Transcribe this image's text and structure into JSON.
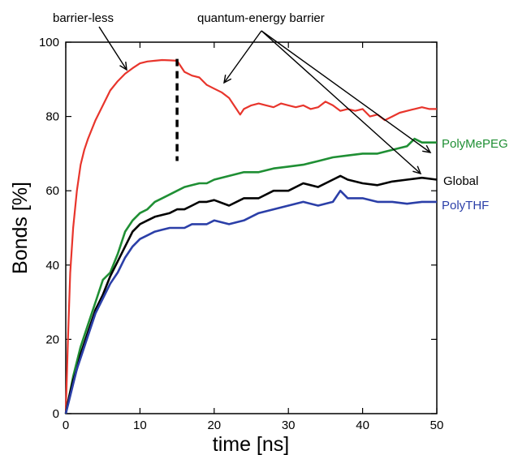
{
  "chart_data": {
    "type": "line",
    "title": "",
    "xlabel": "time [ns]",
    "ylabel": "Bonds [%]",
    "xlim": [
      0,
      50
    ],
    "ylim": [
      0,
      100
    ],
    "xticks": [
      0,
      10,
      20,
      30,
      40,
      50
    ],
    "yticks": [
      0,
      20,
      40,
      60,
      80,
      100
    ],
    "grid": false,
    "legend": "inline-right",
    "annotations": {
      "barrier_less": "barrier-less",
      "quantum_barrier": "quantum-energy barrier",
      "switch_time": 15
    },
    "series": [
      {
        "name": "",
        "color": "#e8352c",
        "x": [
          0,
          0.3,
          0.6,
          1,
          1.5,
          2,
          2.5,
          3,
          4,
          5,
          6,
          7,
          8,
          9,
          10,
          11,
          12,
          13,
          14,
          15,
          16,
          17,
          18,
          19,
          20,
          21,
          22,
          23,
          23.5,
          24,
          25,
          26,
          27,
          28,
          29,
          30,
          31,
          32,
          33,
          34,
          35,
          36,
          37,
          38,
          39,
          40,
          41,
          42,
          43,
          44,
          45,
          46,
          47,
          48,
          49,
          50
        ],
        "values": [
          0,
          20,
          38,
          50,
          60,
          67,
          71,
          74,
          79,
          83,
          87,
          89.5,
          91.5,
          93,
          94.3,
          94.8,
          95,
          95.2,
          95.1,
          95,
          92,
          91,
          90.5,
          88.5,
          87.5,
          86.5,
          85,
          82,
          80.5,
          82,
          83,
          83.5,
          83,
          82.5,
          83.5,
          83,
          82.5,
          83,
          82,
          82.5,
          84,
          83,
          81.5,
          82,
          81.5,
          82,
          80,
          80.5,
          79,
          80,
          81,
          81.5,
          82,
          82.5,
          82,
          82
        ]
      },
      {
        "name": "PolyMePEG",
        "color": "#1f8f34",
        "x": [
          0,
          0.5,
          1,
          1.5,
          2,
          3,
          4,
          5,
          6,
          7,
          8,
          9,
          10,
          11,
          12,
          13,
          14,
          15,
          16,
          17,
          18,
          19,
          20,
          22,
          24,
          26,
          28,
          30,
          32,
          34,
          36,
          38,
          40,
          42,
          44,
          46,
          47,
          48,
          49,
          50
        ],
        "values": [
          0,
          5,
          10,
          14,
          18,
          24,
          30,
          36,
          38,
          43,
          49,
          52,
          54,
          55,
          57,
          58,
          59,
          60,
          61,
          61.5,
          62,
          62,
          63,
          64,
          65,
          65,
          66,
          66.5,
          67,
          68,
          69,
          69.5,
          70,
          70,
          71,
          72,
          74,
          73,
          73,
          73
        ]
      },
      {
        "name": "Global",
        "color": "#000000",
        "x": [
          0,
          0.5,
          1,
          1.5,
          2,
          3,
          4,
          5,
          6,
          7,
          8,
          9,
          10,
          11,
          12,
          13,
          14,
          15,
          16,
          17,
          18,
          19,
          20,
          22,
          24,
          26,
          28,
          30,
          32,
          34,
          36,
          37,
          38,
          40,
          42,
          44,
          46,
          48,
          50
        ],
        "values": [
          0,
          5,
          9,
          12,
          16,
          22,
          28,
          32,
          37,
          41,
          45,
          49,
          51,
          52,
          53,
          53.5,
          54,
          55,
          55,
          56,
          57,
          57,
          57.5,
          56,
          58,
          58,
          60,
          60,
          62,
          61,
          63,
          64,
          63,
          62,
          61.5,
          62.5,
          63,
          63.5,
          63
        ]
      },
      {
        "name": "PolyTHF",
        "color": "#2b3fa8",
        "x": [
          0,
          0.5,
          1,
          1.5,
          2,
          3,
          4,
          5,
          6,
          7,
          8,
          9,
          10,
          11,
          12,
          13,
          14,
          15,
          16,
          17,
          18,
          19,
          20,
          22,
          24,
          26,
          28,
          30,
          32,
          34,
          36,
          37,
          38,
          40,
          42,
          44,
          46,
          48,
          50
        ],
        "values": [
          0,
          4,
          8,
          12,
          15,
          21,
          27,
          31,
          35,
          38,
          42,
          45,
          47,
          48,
          49,
          49.5,
          50,
          50,
          50,
          51,
          51,
          51,
          52,
          51,
          52,
          54,
          55,
          56,
          57,
          56,
          57,
          60,
          58,
          58,
          57,
          57,
          56.5,
          57,
          57
        ]
      }
    ]
  }
}
